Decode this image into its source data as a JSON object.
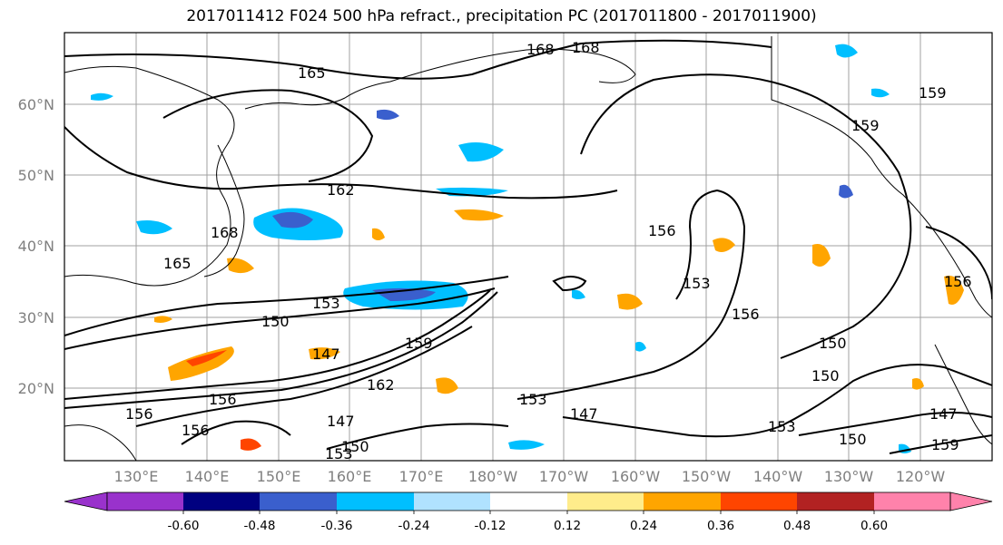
{
  "title": "2017011412 F024 500 hPa refract., precipitation PC (2017011800 - 2017011900)",
  "lat_labels": [
    "60°N",
    "50°N",
    "40°N",
    "30°N",
    "20°N"
  ],
  "lon_labels": [
    "130°E",
    "140°E",
    "150°E",
    "160°E",
    "170°E",
    "180°W",
    "170°W",
    "160°W",
    "150°W",
    "140°W",
    "130°W",
    "120°W"
  ],
  "colorbar": {
    "colors": [
      "#9932cc",
      "#000080",
      "#3a5fcd",
      "#00bfff",
      "#b0e2ff",
      "#ffffff",
      "#ffec8b",
      "#ffa500",
      "#ff4500",
      "#b22222",
      "#ff82ab"
    ],
    "ticks": [
      "-0.60",
      "-0.48",
      "-0.36",
      "-0.24",
      "-0.12",
      "0.12",
      "0.24",
      "0.36",
      "0.48",
      "0.60"
    ]
  },
  "contour_labels": [
    "165",
    "168",
    "168",
    "168",
    "159",
    "159",
    "162",
    "168",
    "165",
    "156",
    "153",
    "150",
    "153",
    "156",
    "150",
    "150",
    "147",
    "159",
    "162",
    "156",
    "153",
    "147",
    "156",
    "156",
    "147",
    "150",
    "153",
    "153",
    "150",
    "159",
    "147",
    "156"
  ]
}
